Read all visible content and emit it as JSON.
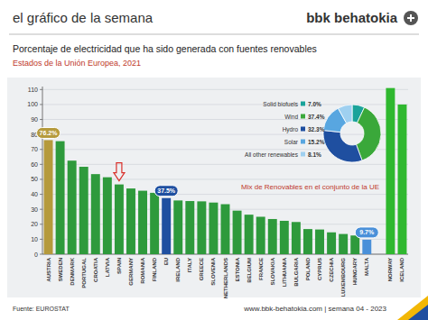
{
  "header": {
    "kicker": "el gráfico de la semana",
    "brand": "bbk behatokia"
  },
  "chart_data": [
    {
      "type": "bar",
      "title": "Porcentaje de electricidad que ha sido generada con fuentes renovables",
      "subtitle": "Estados de la Unión Europea, 2021",
      "categories": [
        "AUSTRIA",
        "SWEDEN",
        "DENMARK",
        "PORTUGAL",
        "CROATIA",
        "LATVIA",
        "SPAIN",
        "GERMANY",
        "ROMANIA",
        "FINLAND",
        "EU",
        "IRELAND",
        "ITALY",
        "GREECE",
        "SLOVENIA",
        "NETHERLANDS",
        "ESTONIA",
        "BELGIUM",
        "FRANCE",
        "SLOVAKIA",
        "LITHUANIA",
        "BULGARIA",
        "POLAND",
        "CYPRUS",
        "CZECHIA",
        "LUXEMBOURG",
        "HUNGARY",
        "MALTA",
        null,
        "NORWAY",
        "ICELAND"
      ],
      "values": [
        76.2,
        75.5,
        62.5,
        58.4,
        53.5,
        51.4,
        46.6,
        43.9,
        42.4,
        41.0,
        37.5,
        35.9,
        35.5,
        35.3,
        34.5,
        33.4,
        29.1,
        26.4,
        25.0,
        23.5,
        22.3,
        21.5,
        16.8,
        16.5,
        14.6,
        13.5,
        12.5,
        9.7,
        null,
        111,
        100
      ],
      "value_labels": [
        "76.2%",
        null,
        null,
        null,
        null,
        null,
        null,
        null,
        null,
        null,
        "37.5%",
        null,
        null,
        null,
        null,
        null,
        null,
        null,
        null,
        null,
        null,
        null,
        null,
        null,
        null,
        null,
        null,
        "9.7%",
        null,
        null,
        null
      ],
      "colors": [
        "#b59a3c",
        "#2e9a3c",
        "#2e9a3c",
        "#2e9a3c",
        "#2e9a3c",
        "#2e9a3c",
        "#2e9a3c",
        "#2e9a3c",
        "#2e9a3c",
        "#2e9a3c",
        "#1f4fa0",
        "#2e9a3c",
        "#2e9a3c",
        "#2e9a3c",
        "#2e9a3c",
        "#2e9a3c",
        "#2e9a3c",
        "#2e9a3c",
        "#2e9a3c",
        "#2e9a3c",
        "#2e9a3c",
        "#2e9a3c",
        "#2e9a3c",
        "#2e9a3c",
        "#2e9a3c",
        "#2e9a3c",
        "#2e9a3c",
        "#4a90d9",
        null,
        "#2fb82f",
        "#2fb82f"
      ],
      "ylim": [
        0,
        112
      ],
      "yticks": [
        0,
        10,
        20,
        30,
        40,
        50,
        60,
        70,
        80,
        90,
        100,
        110
      ],
      "grid": true,
      "data_labels": true
    },
    {
      "type": "pie",
      "title": "Mix de Renovables en el conjunto de la UE",
      "categories": [
        "Solid biofuels",
        "Wind",
        "Hydro",
        "Solar",
        "All other renewables"
      ],
      "values": [
        7.0,
        37.4,
        32.3,
        15.2,
        8.1
      ],
      "value_labels": [
        "7.0%",
        "37.4%",
        "32.3%",
        "15.2%",
        "8.1%"
      ],
      "colors": [
        "#1aa39a",
        "#3aa83a",
        "#1f4fa0",
        "#58a6e0",
        "#9fd0f0"
      ],
      "data_labels": true
    }
  ],
  "footer": {
    "source": "Fuente: EUROSTAT",
    "site": "www.bbk-behatokia.com | semana 04 - 2023"
  }
}
